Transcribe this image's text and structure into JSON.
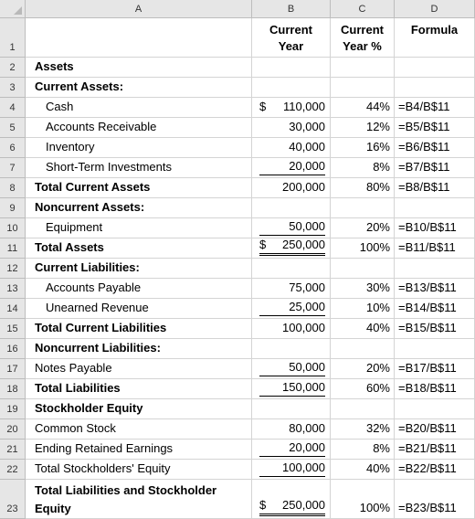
{
  "columns": [
    "A",
    "B",
    "C",
    "D"
  ],
  "header": {
    "b_line1": "Current",
    "b_line2": "Year",
    "c_line1": "Current",
    "c_line2": "Year %",
    "d_line1": "Formula"
  },
  "rows": [
    {
      "num": "1"
    },
    {
      "num": "2",
      "label": "Assets",
      "bold": true
    },
    {
      "num": "3",
      "label": "Current Assets:",
      "bold": true
    },
    {
      "num": "4",
      "label": "Cash",
      "indent": 2,
      "dollar": "$",
      "value": "110,000",
      "pct": "44%",
      "formula": "=B4/B$11"
    },
    {
      "num": "5",
      "label": "Accounts Receivable",
      "indent": 2,
      "value": "30,000",
      "pct": "12%",
      "formula": "=B5/B$11"
    },
    {
      "num": "6",
      "label": "Inventory",
      "indent": 2,
      "value": "40,000",
      "pct": "16%",
      "formula": "=B6/B$11"
    },
    {
      "num": "7",
      "label": "Short-Term Investments",
      "indent": 2,
      "value": "20,000",
      "pct": "8%",
      "formula": "=B7/B$11",
      "ul": true
    },
    {
      "num": "8",
      "label": "Total Current Assets",
      "bold": true,
      "value": "200,000",
      "pct": "80%",
      "formula": "=B8/B$11"
    },
    {
      "num": "9",
      "label": "Noncurrent Assets:",
      "bold": true
    },
    {
      "num": "10",
      "label": "Equipment",
      "indent": 2,
      "value": "50,000",
      "pct": "20%",
      "formula": "=B10/B$11",
      "ul": true
    },
    {
      "num": "11",
      "label": "Total Assets",
      "bold": true,
      "dollar": "$",
      "value": "250,000",
      "pct": "100%",
      "formula": "=B11/B$11",
      "dul": true
    },
    {
      "num": "12",
      "label": "Current Liabilities:",
      "bold": true
    },
    {
      "num": "13",
      "label": "Accounts Payable",
      "indent": 2,
      "value": "75,000",
      "pct": "30%",
      "formula": "=B13/B$11"
    },
    {
      "num": "14",
      "label": "Unearned Revenue",
      "indent": 2,
      "value": "25,000",
      "pct": "10%",
      "formula": "=B14/B$11",
      "ul": true
    },
    {
      "num": "15",
      "label": "Total Current Liabilities",
      "bold": true,
      "value": "100,000",
      "pct": "40%",
      "formula": "=B15/B$11"
    },
    {
      "num": "16",
      "label": "Noncurrent Liabilities:",
      "bold": true
    },
    {
      "num": "17",
      "label": "Notes Payable",
      "indent": 1,
      "value": "50,000",
      "pct": "20%",
      "formula": "=B17/B$11",
      "ul": true
    },
    {
      "num": "18",
      "label": "Total Liabilities",
      "bold": true,
      "value": "150,000",
      "pct": "60%",
      "formula": "=B18/B$11",
      "ul": true
    },
    {
      "num": "19",
      "label": "Stockholder Equity",
      "bold": true
    },
    {
      "num": "20",
      "label": "Common Stock",
      "indent": 1,
      "value": "80,000",
      "pct": "32%",
      "formula": "=B20/B$11"
    },
    {
      "num": "21",
      "label": "Ending Retained Earnings",
      "indent": 1,
      "value": "20,000",
      "pct": "8%",
      "formula": "=B21/B$11",
      "ul": true
    },
    {
      "num": "22",
      "label": "Total Stockholders' Equity",
      "indent": 1,
      "value": "100,000",
      "pct": "40%",
      "formula": "=B22/B$11",
      "ul": true
    },
    {
      "num": "23",
      "label": "Total Liabilities and Stockholder",
      "label2": "Equity",
      "bold": true,
      "dollar": "$",
      "value": "250,000",
      "pct": "100%",
      "formula": "=B23/B$11",
      "dul": true
    }
  ]
}
